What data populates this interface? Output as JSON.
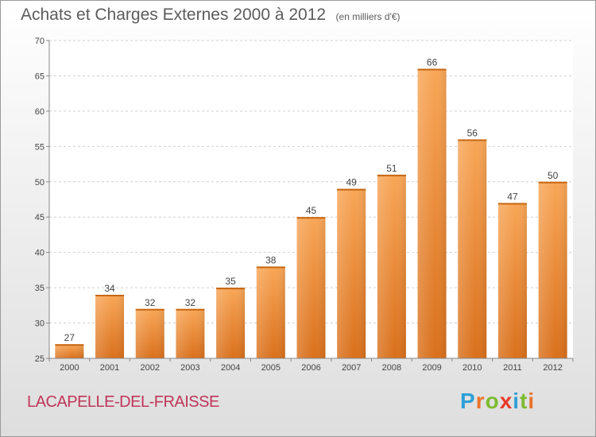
{
  "chart_data": {
    "type": "bar",
    "title": "Achats et Charges Externes 2000 à 2012",
    "subtitle": "(en milliers d'€)",
    "categories": [
      "2000",
      "2001",
      "2002",
      "2003",
      "2004",
      "2005",
      "2006",
      "2007",
      "2008",
      "2009",
      "2010",
      "2011",
      "2012"
    ],
    "values": [
      27,
      34,
      32,
      32,
      35,
      38,
      45,
      49,
      51,
      66,
      56,
      47,
      50
    ],
    "ylim": [
      25,
      70
    ],
    "yticks": [
      25,
      30,
      35,
      40,
      45,
      50,
      55,
      60,
      65,
      70
    ],
    "grid": "y-dashed",
    "bar_color": "#f0923e",
    "xlabel": "",
    "ylabel": ""
  },
  "footer": {
    "commune": "LACAPELLE-DEL-FRAISSE"
  },
  "logo": {
    "letters": [
      "P",
      "r",
      "o",
      "x",
      "i",
      "t",
      "i"
    ],
    "colors": [
      "#2e9fd6",
      "#e8732a",
      "#7dbb2f",
      "#e83a2a",
      "#2e9fd6",
      "#7dbb2f",
      "#e8732a"
    ]
  }
}
